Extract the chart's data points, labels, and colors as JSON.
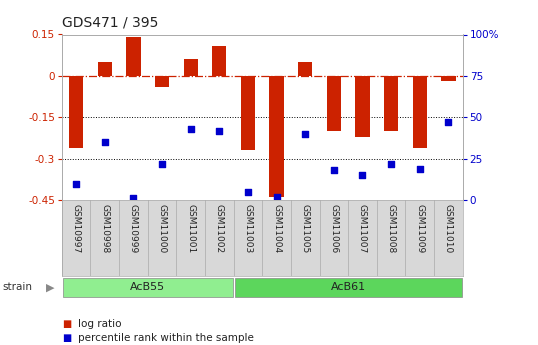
{
  "title": "GDS471 / 395",
  "samples": [
    "GSM10997",
    "GSM10998",
    "GSM10999",
    "GSM11000",
    "GSM11001",
    "GSM11002",
    "GSM11003",
    "GSM11004",
    "GSM11005",
    "GSM11006",
    "GSM11007",
    "GSM11008",
    "GSM11009",
    "GSM11010"
  ],
  "log_ratio": [
    -0.26,
    0.05,
    0.142,
    -0.04,
    0.06,
    0.11,
    -0.27,
    -0.44,
    0.05,
    -0.2,
    -0.22,
    -0.2,
    -0.26,
    -0.02
  ],
  "percentile_rank": [
    10,
    35,
    1,
    22,
    43,
    42,
    5,
    2,
    40,
    18,
    15,
    22,
    19,
    47
  ],
  "groups": [
    {
      "label": "AcB55",
      "start": 0,
      "end": 6,
      "color": "#90EE90"
    },
    {
      "label": "AcB61",
      "start": 6,
      "end": 14,
      "color": "#5CD65C"
    }
  ],
  "bar_color": "#CC2200",
  "dot_color": "#0000CC",
  "ylim_left": [
    -0.45,
    0.15
  ],
  "ylim_right": [
    0,
    100
  ],
  "hline_zero_color": "#CC2200",
  "hline_dotted_color": "#000000",
  "hline_dotted_vals": [
    -0.15,
    -0.3
  ],
  "right_ticks": [
    0,
    25,
    50,
    75,
    100
  ],
  "right_tick_labels": [
    "0",
    "25",
    "50",
    "75",
    "100%"
  ],
  "background_color": "#ffffff",
  "plot_bg_color": "#ffffff",
  "bar_width": 0.5,
  "dot_size": 18,
  "strain_label": "strain",
  "legend_log_ratio": "log ratio",
  "legend_percentile": "percentile rank within the sample",
  "title_fontsize": 10,
  "tick_fontsize": 7.5,
  "label_fontsize": 6.5,
  "group_fontsize": 8,
  "legend_fontsize": 7.5
}
